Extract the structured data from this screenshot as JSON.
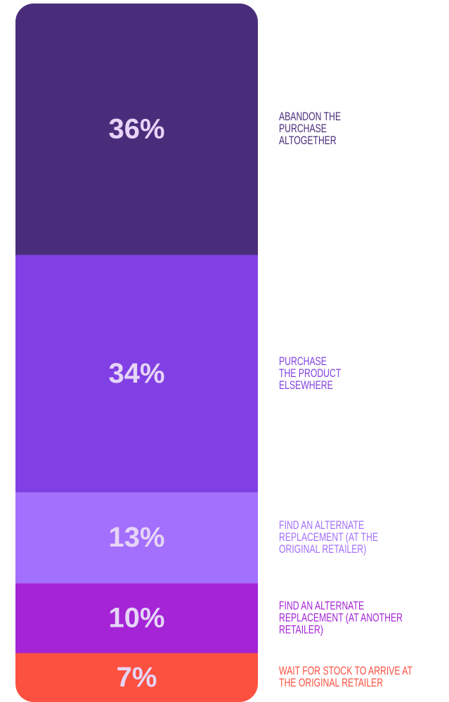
{
  "chart_data": {
    "type": "stacked-bar",
    "categories": [
      [
        "ABANDON THE",
        "PURCHASE",
        "ALTOGETHER"
      ],
      [
        "PURCHASE",
        "THE PRODUCT",
        "ELSEWHERE"
      ],
      [
        "FIND AN ALTERNATE",
        "REPLACEMENT (AT THE",
        "ORIGINAL RETAILER)"
      ],
      [
        "FIND AN ALTERNATE",
        "REPLACEMENT (AT ANOTHER",
        "RETAILER)"
      ],
      [
        "WAIT FOR STOCK TO ARRIVE AT",
        "THE ORIGINAL RETAILER"
      ]
    ],
    "values": [
      36,
      34,
      13,
      10,
      7
    ],
    "value_labels": [
      "36%",
      "34%",
      "13%",
      "10%",
      "7%"
    ],
    "colors": [
      "#4a2d7a",
      "#8140e3",
      "#a36ffd",
      "#a424d6",
      "#fc5040"
    ],
    "ylim": [
      0,
      100
    ]
  }
}
